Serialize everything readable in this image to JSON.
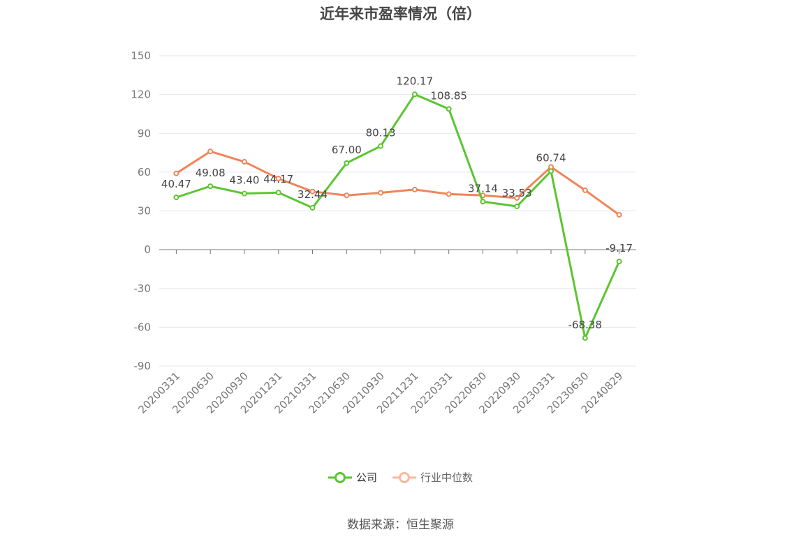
{
  "chart_data": {
    "type": "line",
    "title": "近年来市盈率情况（倍）",
    "categories": [
      "20200331",
      "20200630",
      "20200930",
      "20201231",
      "20210331",
      "20210630",
      "20210930",
      "20211231",
      "20220331",
      "20220630",
      "20220930",
      "20230331",
      "20230630",
      "20240829"
    ],
    "series": [
      {
        "name": "公司",
        "color": "#5cc531",
        "values": [
          40.47,
          49.08,
          43.4,
          44.17,
          32.44,
          67.0,
          80.13,
          120.17,
          108.85,
          37.14,
          33.53,
          60.74,
          -68.38,
          -9.17
        ],
        "labels": [
          "40.47",
          "49.08",
          "43.40",
          "44.17",
          "32.44",
          "67.00",
          "80.13",
          "120.17",
          "108.85",
          "37.14",
          "33.53",
          "60.74",
          "-68.38",
          "-9.17"
        ]
      },
      {
        "name": "行业中位数",
        "color": "#f0845a",
        "values": [
          59,
          76,
          68,
          55,
          45,
          42,
          44,
          46.5,
          43,
          42,
          40,
          64,
          46,
          27
        ]
      }
    ],
    "ylim": [
      -90,
      150
    ],
    "yticks": [
      "150",
      "120",
      "90",
      "60",
      "30",
      "0",
      "-30",
      "-60",
      "-90"
    ],
    "grid": true,
    "legend_position": "bottom"
  },
  "source": "数据来源：恒生聚源"
}
